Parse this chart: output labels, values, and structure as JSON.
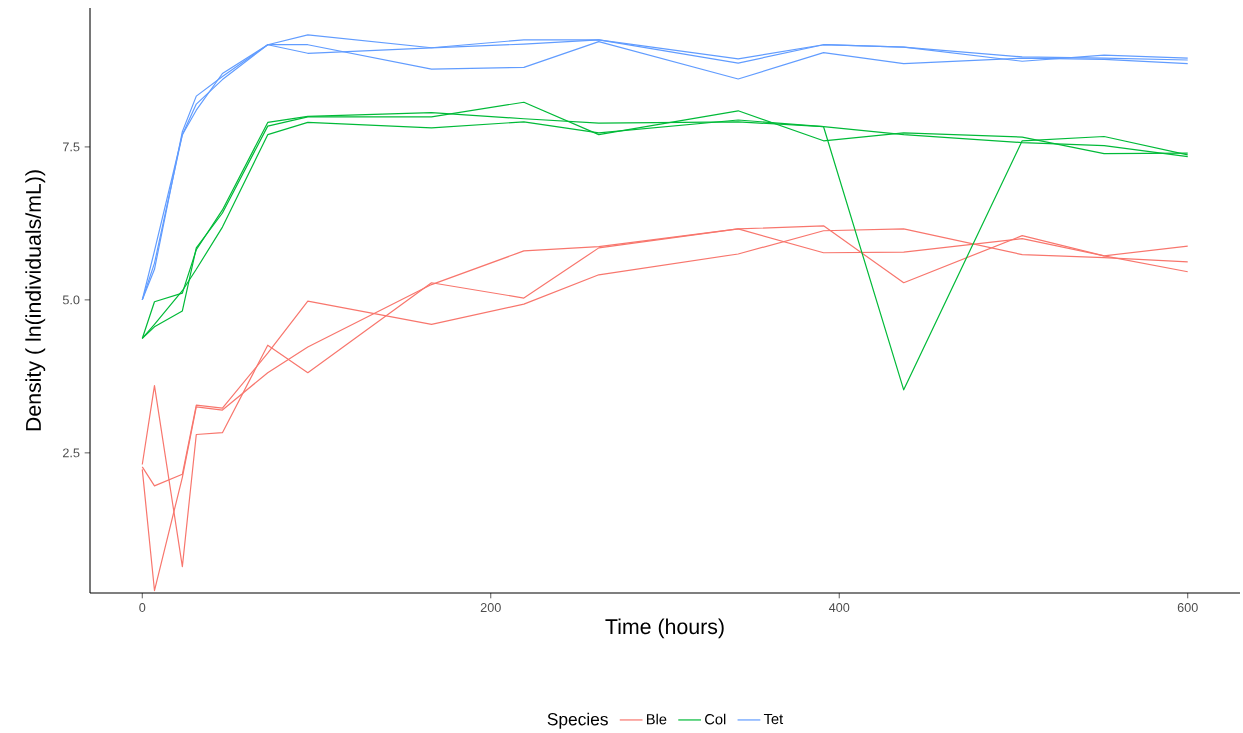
{
  "chart_data": {
    "type": "line",
    "xlabel": "Time (hours)",
    "ylabel": "Density ( ln(individuals/mL))",
    "legend_title": "Species",
    "legend": "bottom",
    "grid": false,
    "xlim": [
      -30,
      630
    ],
    "ylim": [
      0.21,
      9.77
    ],
    "xticks": [
      0,
      200,
      400,
      600
    ],
    "yticks": [
      {
        "value": 2.5,
        "label": "2.5"
      },
      {
        "value": 5,
        "label": "5.0"
      },
      {
        "value": 7.5,
        "label": "7.5"
      }
    ],
    "x": [
      0,
      7,
      23,
      31,
      46,
      72,
      95,
      166,
      219,
      262,
      342,
      391,
      437,
      505,
      552,
      600
    ],
    "series": [
      {
        "name": "Ble",
        "color": "#f8766d",
        "values": [
          2.31,
          3.6,
          0.64,
          2.8,
          2.83,
          4.26,
          3.81,
          5.28,
          5.03,
          5.85,
          6.16,
          6.21,
          5.28,
          6.05,
          5.72,
          5.46
        ]
      },
      {
        "color": "#f8766d",
        "values": [
          2.27,
          1.96,
          2.15,
          3.28,
          3.23,
          4.13,
          4.98,
          4.6,
          4.93,
          5.41,
          5.75,
          6.13,
          6.16,
          5.74,
          5.69,
          5.62
        ]
      },
      {
        "color": "#f8766d",
        "values": [
          2.23,
          0.25,
          2.1,
          3.25,
          3.2,
          3.81,
          4.23,
          5.25,
          5.8,
          5.87,
          6.16,
          5.77,
          5.78,
          6.0,
          5.72,
          5.88
        ]
      },
      {
        "name": "Col",
        "color": "#00ba38",
        "values": [
          4.37,
          4.97,
          5.11,
          5.82,
          6.47,
          7.9,
          8.0,
          8.06,
          7.96,
          7.89,
          7.91,
          7.83,
          3.53,
          7.6,
          7.67,
          7.37
        ]
      },
      {
        "color": "#00ba38",
        "values": [
          4.37,
          4.56,
          4.82,
          5.85,
          6.42,
          7.84,
          7.99,
          7.99,
          8.23,
          7.7,
          8.09,
          7.6,
          7.73,
          7.66,
          7.39,
          7.4
        ]
      },
      {
        "color": "#00ba38",
        "values": [
          4.37,
          4.6,
          5.15,
          5.5,
          6.19,
          7.7,
          7.9,
          7.81,
          7.91,
          7.73,
          7.94,
          7.83,
          7.7,
          7.57,
          7.52,
          7.34
        ]
      },
      {
        "name": "Tet",
        "color": "#619cff",
        "values": [
          5.0,
          5.8,
          7.7,
          8.1,
          8.7,
          9.17,
          9.33,
          9.12,
          9.25,
          9.25,
          8.87,
          9.17,
          9.13,
          8.9,
          9.0,
          8.95
        ]
      },
      {
        "color": "#619cff",
        "values": [
          5.0,
          5.5,
          7.75,
          8.33,
          8.65,
          9.17,
          9.03,
          9.12,
          9.18,
          9.25,
          8.94,
          9.17,
          9.13,
          8.97,
          8.95,
          8.92
        ]
      },
      {
        "color": "#619cff",
        "values": [
          5.0,
          5.6,
          7.7,
          8.2,
          8.6,
          9.17,
          9.17,
          8.77,
          8.8,
          9.22,
          8.61,
          9.04,
          8.86,
          8.95,
          8.93,
          8.86
        ]
      }
    ]
  }
}
